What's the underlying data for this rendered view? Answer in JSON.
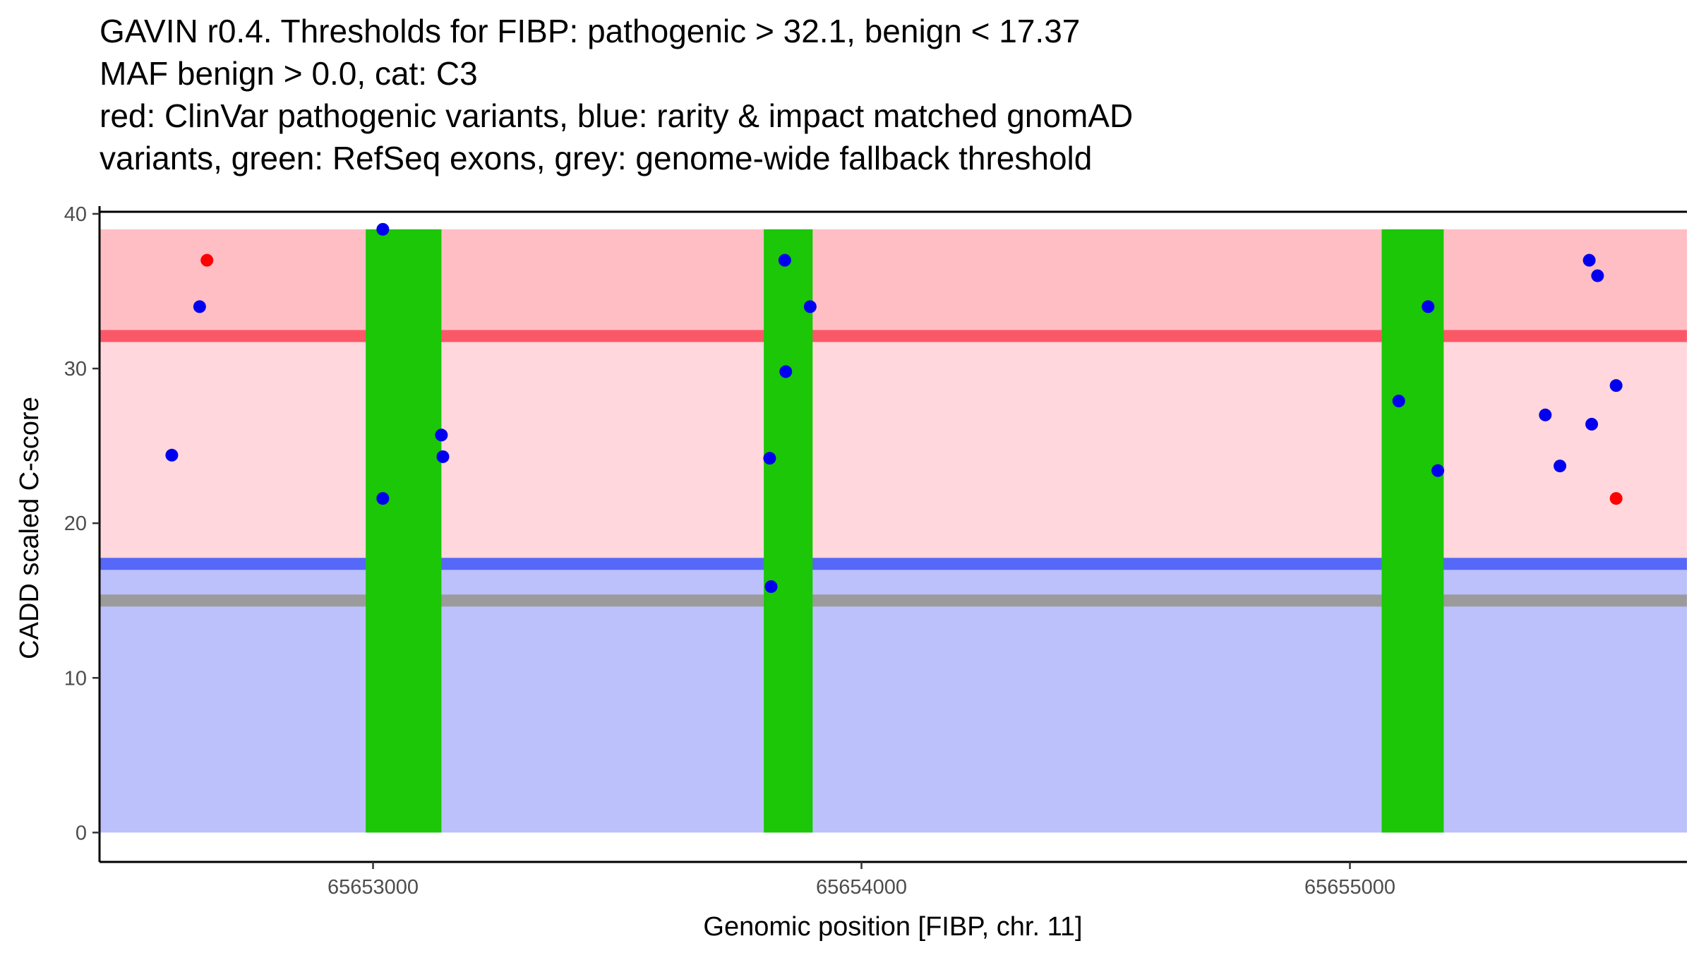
{
  "chart_data": {
    "type": "scatter",
    "title_lines": [
      "GAVIN r0.4. Thresholds for FIBP: pathogenic > 32.1, benign < 17.37",
      "MAF benign > 0.0, cat: C3",
      "red: ClinVar pathogenic variants, blue: rarity & impact matched gnomAD",
      "variants, green: RefSeq exons, grey: genome-wide fallback threshold"
    ],
    "xlabel": "Genomic position [FIBP, chr. 11]",
    "ylabel": "CADD scaled C-score",
    "xlim": [
      65652440,
      65655690
    ],
    "ylim": [
      -1.9,
      40.5
    ],
    "x_ticks": [
      65653000,
      65654000,
      65655000
    ],
    "y_ticks": [
      0,
      10,
      20,
      30,
      40
    ],
    "pathogenic_threshold": 32.1,
    "benign_threshold": 17.37,
    "fallback_threshold": 15,
    "score_max": 39,
    "colors": {
      "pathogenic_region": "#ffbec4",
      "middle_region": "#ffd7dc",
      "benign_region": "#bcc1fb",
      "pathogenic_line": "#fb5867",
      "benign_line": "#5668f8",
      "fallback_line": "#9b9b9b",
      "exon": "#1bc707",
      "pathogenic_point": "#ff0000",
      "benign_point": "#0000ee"
    },
    "exons": [
      {
        "start": 65652985,
        "end": 65653140
      },
      {
        "start": 65653800,
        "end": 65653900
      },
      {
        "start": 65655065,
        "end": 65655192
      }
    ],
    "series": [
      {
        "name": "ClinVar pathogenic variants",
        "color": "red",
        "points": [
          {
            "x": 65652660,
            "y": 37.0
          },
          {
            "x": 65655545,
            "y": 21.6
          }
        ]
      },
      {
        "name": "rarity & impact matched gnomAD variants",
        "color": "blue",
        "points": [
          {
            "x": 65652588,
            "y": 24.4
          },
          {
            "x": 65652645,
            "y": 34.0
          },
          {
            "x": 65653020,
            "y": 39.0
          },
          {
            "x": 65653020,
            "y": 21.6
          },
          {
            "x": 65653140,
            "y": 25.7
          },
          {
            "x": 65653143,
            "y": 24.3
          },
          {
            "x": 65653812,
            "y": 24.2
          },
          {
            "x": 65653815,
            "y": 15.9
          },
          {
            "x": 65653843,
            "y": 37.0
          },
          {
            "x": 65653845,
            "y": 29.8
          },
          {
            "x": 65653895,
            "y": 34.0
          },
          {
            "x": 65655100,
            "y": 27.9
          },
          {
            "x": 65655160,
            "y": 34.0
          },
          {
            "x": 65655180,
            "y": 23.4
          },
          {
            "x": 65655400,
            "y": 27.0
          },
          {
            "x": 65655430,
            "y": 23.7
          },
          {
            "x": 65655490,
            "y": 37.0
          },
          {
            "x": 65655495,
            "y": 26.4
          },
          {
            "x": 65655507,
            "y": 36.0
          },
          {
            "x": 65655545,
            "y": 28.9
          }
        ]
      }
    ]
  }
}
